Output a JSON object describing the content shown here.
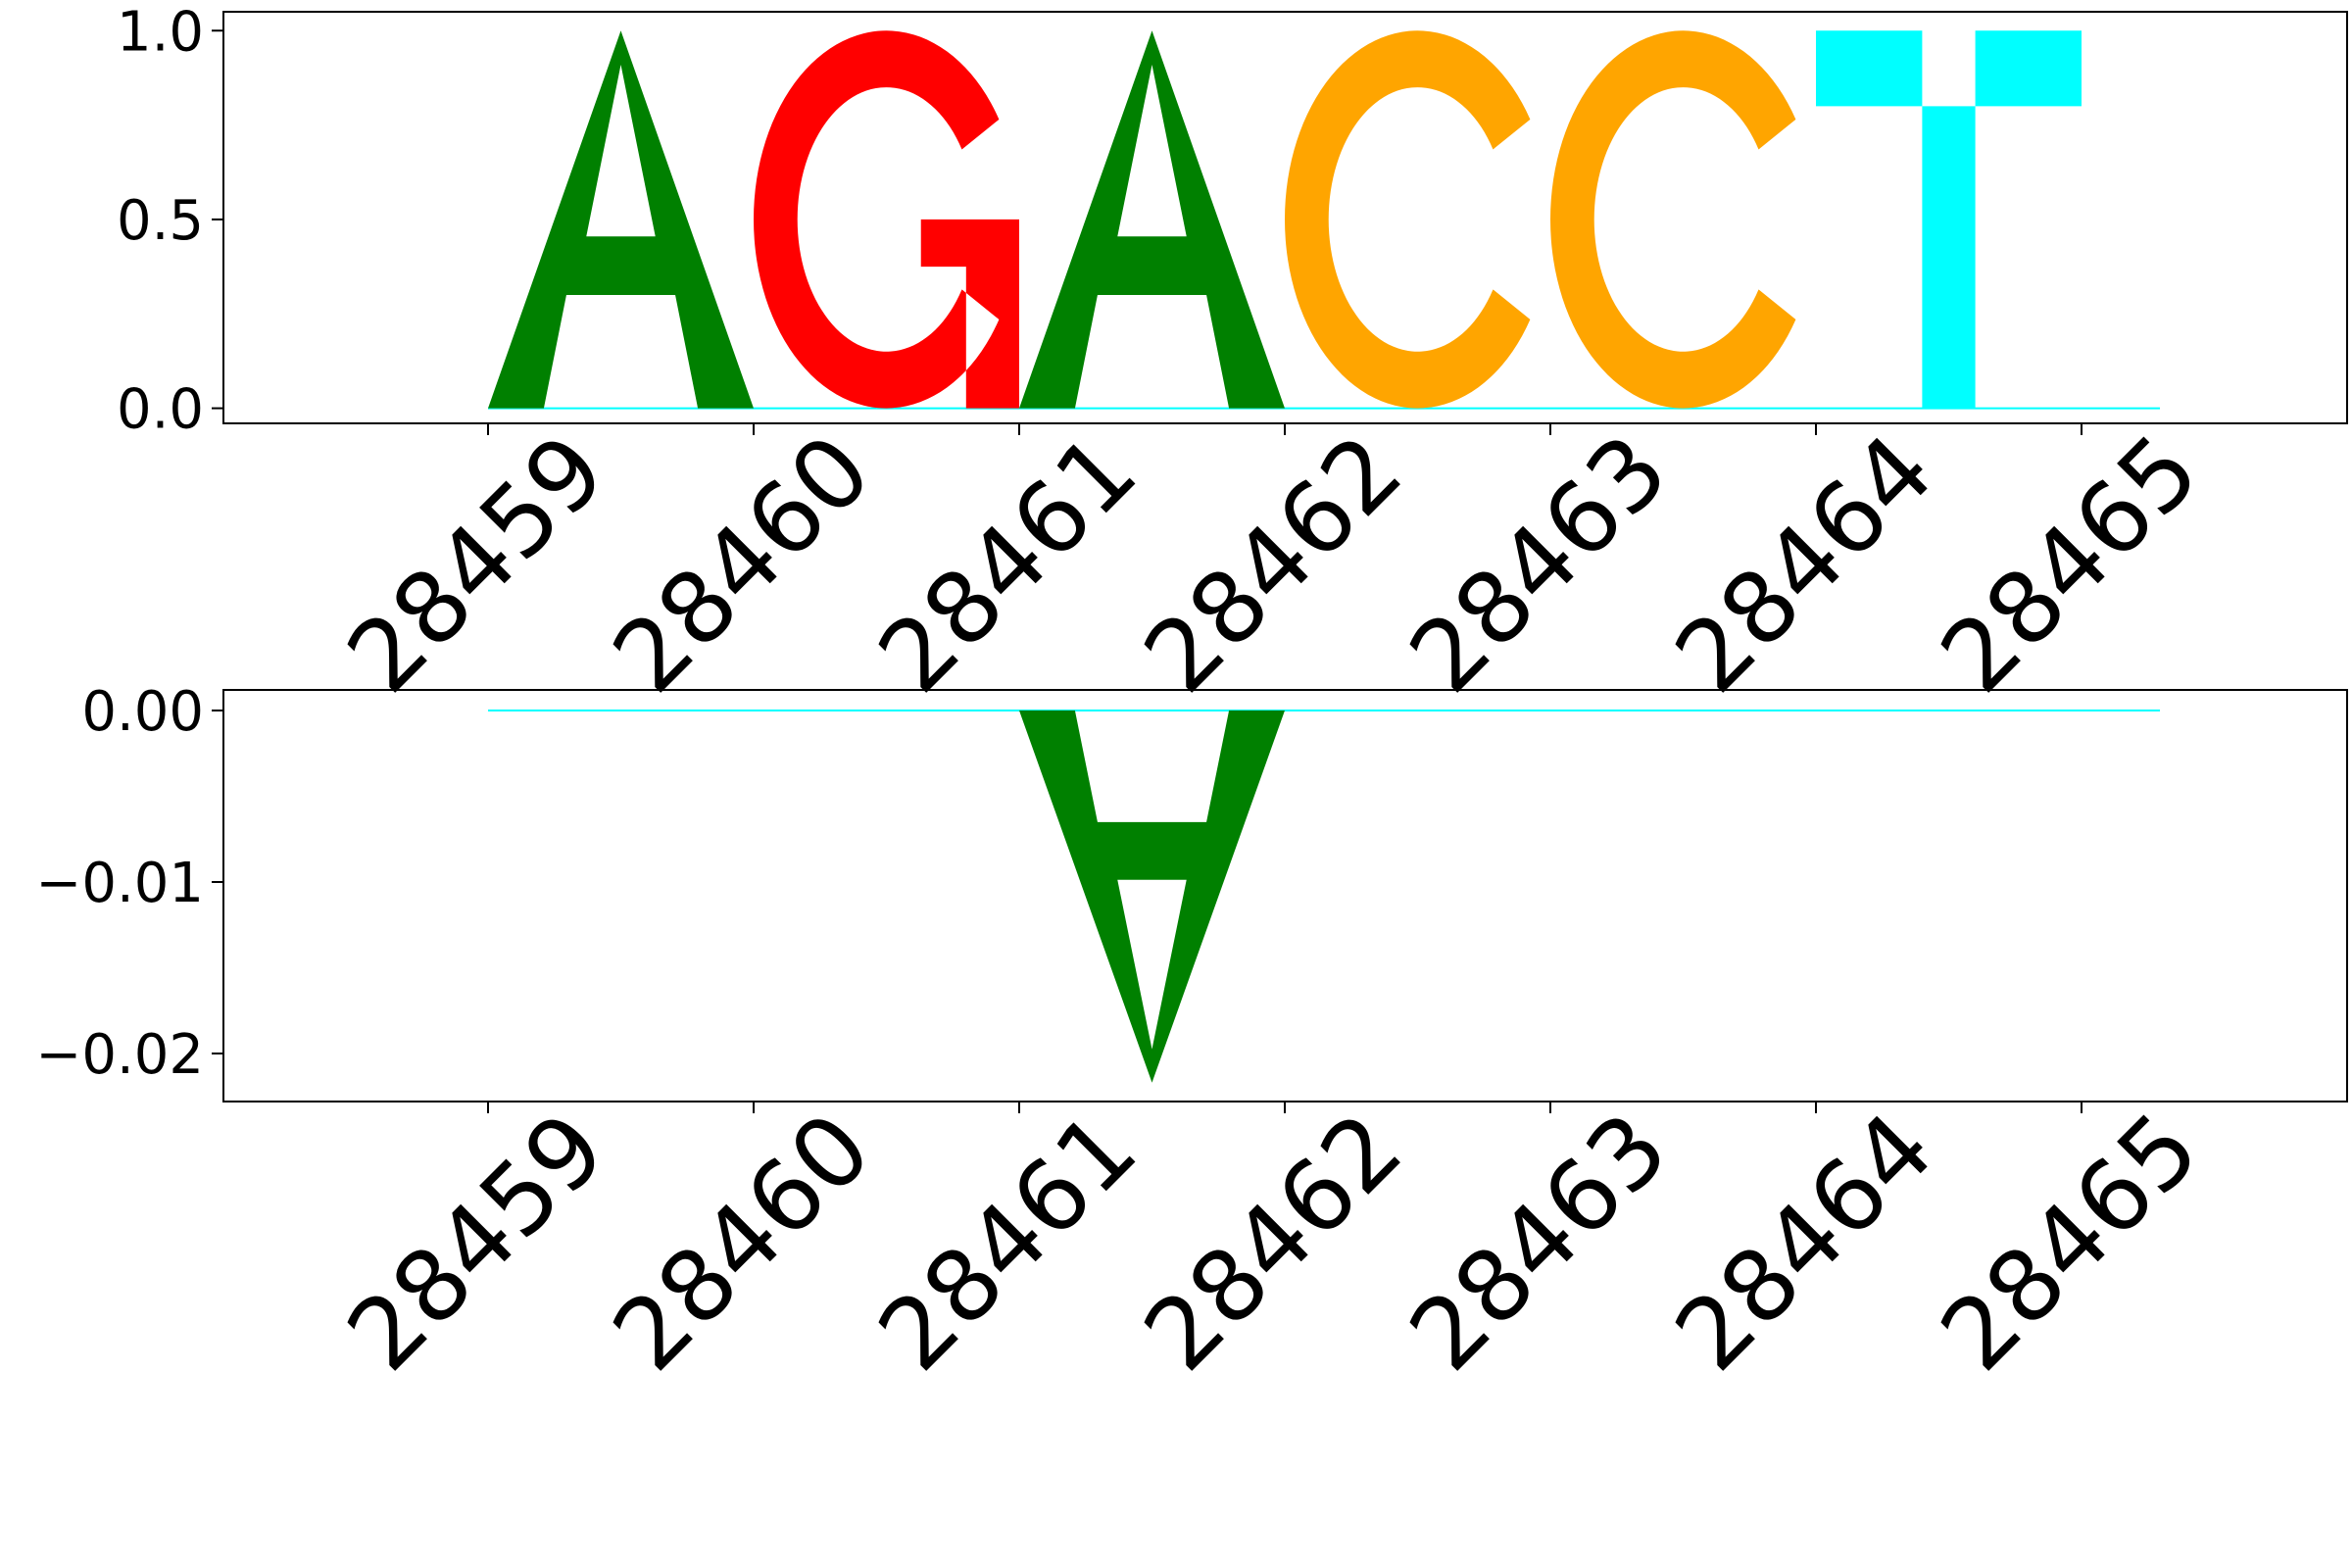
{
  "chart_data": [
    {
      "type": "sequence-logo",
      "title": "",
      "xlabel": "",
      "ylabel": "",
      "ylim": [
        -0.04,
        1.05
      ],
      "yticks": [
        0.0,
        0.5,
        1.0
      ],
      "ytick_labels": [
        "0.0",
        "0.5",
        "1.0"
      ],
      "positions": [
        28459,
        28460,
        28461,
        28462,
        28463,
        28464,
        28465
      ],
      "xtick_labels": [
        "28459",
        "28460",
        "28461",
        "28462",
        "28463",
        "28464",
        "28465"
      ],
      "grid": false,
      "letters": [
        {
          "position": 28459,
          "base": "A",
          "value": 1.0
        },
        {
          "position": 28460,
          "base": "G",
          "value": 1.0
        },
        {
          "position": 28461,
          "base": "A",
          "value": 1.0
        },
        {
          "position": 28462,
          "base": "C",
          "value": 1.0
        },
        {
          "position": 28463,
          "base": "C",
          "value": 1.0
        },
        {
          "position": 28464,
          "base": "T",
          "value": 1.0
        }
      ]
    },
    {
      "type": "sequence-logo",
      "title": "",
      "xlabel": "",
      "ylabel": "",
      "ylim": [
        -0.0228,
        0.0012
      ],
      "yticks": [
        -0.02,
        -0.01,
        0.0
      ],
      "ytick_labels": [
        "−0.02",
        "−0.01",
        "0.00"
      ],
      "positions": [
        28459,
        28460,
        28461,
        28462,
        28463,
        28464,
        28465
      ],
      "xtick_labels": [
        "28459",
        "28460",
        "28461",
        "28462",
        "28463",
        "28464",
        "28465"
      ],
      "grid": false,
      "letters": [
        {
          "position": 28461,
          "base": "A",
          "value": -0.0217
        }
      ]
    }
  ],
  "colors": {
    "A": "#008000",
    "C": "#ffa500",
    "G": "#ff0000",
    "T": "#00ffff",
    "axes": "#000000",
    "background": "#ffffff"
  }
}
